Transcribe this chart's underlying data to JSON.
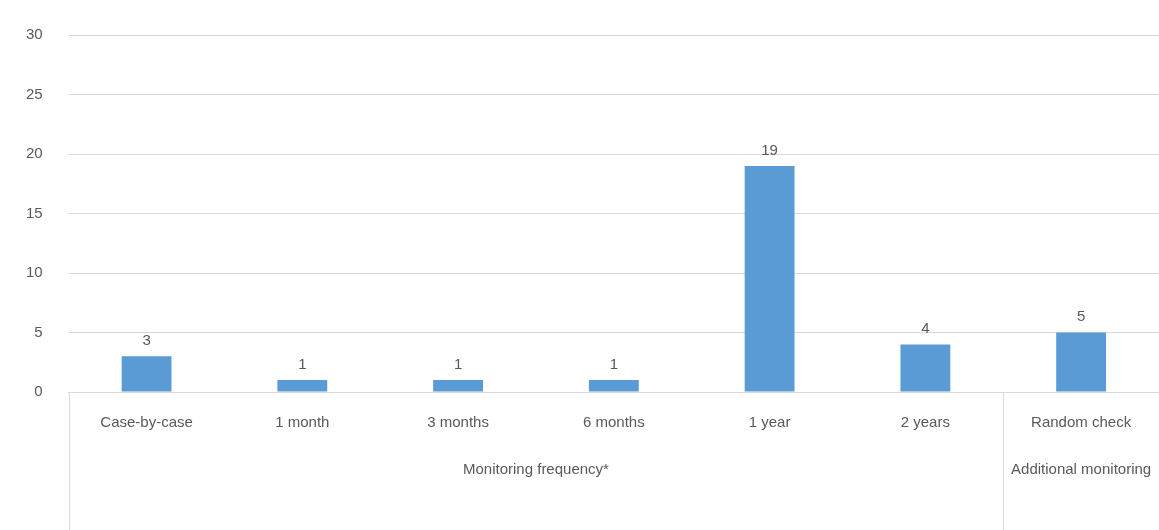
{
  "chart_data": {
    "type": "bar",
    "categories": [
      "Case-by-case",
      "1 month",
      "3 months",
      "6 months",
      "1 year",
      "2 years",
      "Random check"
    ],
    "values": [
      3,
      1,
      1,
      1,
      19,
      4,
      5
    ],
    "color": "#5b9bd5",
    "ylim": [
      0,
      30
    ],
    "yticks": [
      0,
      5,
      10,
      15,
      20,
      25,
      30
    ],
    "grid": "y",
    "legend": false,
    "data_labels": true,
    "annotations": [
      "Monitoring frequency*",
      "Additional monitoring"
    ]
  }
}
